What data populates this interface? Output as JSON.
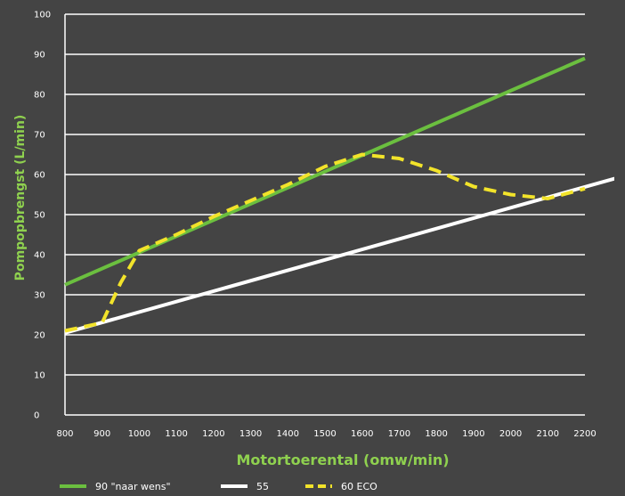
{
  "chart_data": {
    "type": "line",
    "title": "",
    "xlabel": "Motortoerental (omw/min)",
    "ylabel": "Pompopbrengst (L/min)",
    "xlim": [
      800,
      2200
    ],
    "ylim": [
      0,
      100
    ],
    "x_ticks": [
      800,
      900,
      1000,
      1100,
      1200,
      1300,
      1400,
      1500,
      1600,
      1700,
      1800,
      1900,
      2000,
      2100,
      2200
    ],
    "y_ticks": [
      0,
      10,
      20,
      30,
      40,
      50,
      60,
      70,
      80,
      90,
      100
    ],
    "grid": true,
    "legend_position": "bottom",
    "series": [
      {
        "name": "90 \"naar wens\"",
        "color": "#6bbf3f",
        "style": "solid",
        "points": [
          [
            800,
            32.5
          ],
          [
            2200,
            89
          ]
        ]
      },
      {
        "name": "55",
        "color": "#ffffff",
        "style": "solid",
        "points": [
          [
            800,
            20.5
          ],
          [
            2280,
            59
          ]
        ]
      },
      {
        "name": "60 ECO",
        "color": "#f2e32a",
        "style": "dashed",
        "points": [
          [
            800,
            21
          ],
          [
            900,
            23
          ],
          [
            950,
            33
          ],
          [
            1000,
            41
          ],
          [
            1100,
            45
          ],
          [
            1200,
            49.5
          ],
          [
            1300,
            53.5
          ],
          [
            1400,
            57.5
          ],
          [
            1500,
            62
          ],
          [
            1600,
            65
          ],
          [
            1700,
            64
          ],
          [
            1800,
            61
          ],
          [
            1900,
            57
          ],
          [
            2000,
            55
          ],
          [
            2100,
            54
          ],
          [
            2200,
            56.5
          ]
        ]
      }
    ]
  }
}
